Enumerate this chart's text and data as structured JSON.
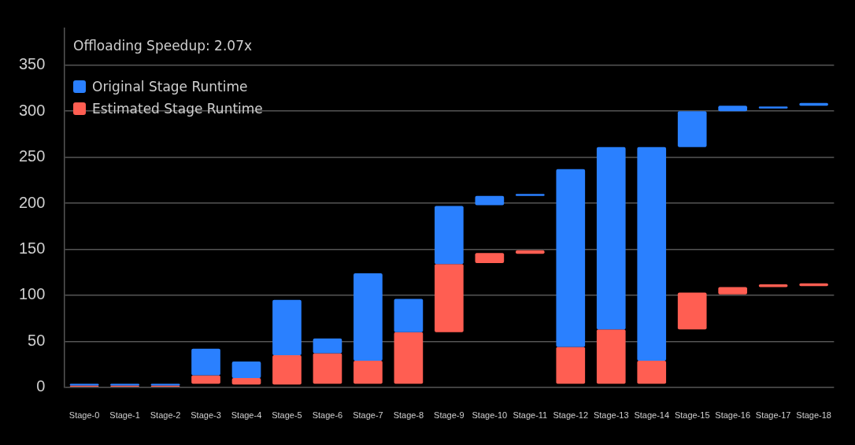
{
  "chart_data": {
    "type": "bar",
    "annotations": [
      "Offloading Speedup: 2.07x"
    ],
    "categories": [
      "Stage-0",
      "Stage-1",
      "Stage-2",
      "Stage-3",
      "Stage-4",
      "Stage-5",
      "Stage-6",
      "Stage-7",
      "Stage-8",
      "Stage-9",
      "Stage-10",
      "Stage-11",
      "Stage-12",
      "Stage-13",
      "Stage-14",
      "Stage-15",
      "Stage-16",
      "Stage-17",
      "Stage-18"
    ],
    "series": [
      {
        "name": "Original Stage Runtime",
        "color": "#2a80ff",
        "base": [
          2,
          2,
          2,
          13,
          10,
          35,
          37,
          29,
          60,
          134,
          198,
          208,
          44,
          63,
          29,
          261,
          300,
          303,
          306
        ],
        "values": [
          2,
          2,
          2,
          29,
          18,
          60,
          16,
          95,
          36,
          63,
          10,
          2,
          193,
          198,
          232,
          39,
          6,
          2,
          3
        ]
      },
      {
        "name": "Estimated Stage Runtime",
        "color": "#ff5e52",
        "base": [
          0,
          0,
          0,
          4,
          3,
          3,
          4,
          4,
          4,
          60,
          135,
          145,
          4,
          4,
          4,
          63,
          101,
          109,
          110
        ],
        "values": [
          2,
          2,
          2,
          9,
          7,
          32,
          33,
          25,
          56,
          74,
          11,
          4,
          40,
          59,
          25,
          40,
          8,
          3,
          3
        ]
      }
    ],
    "ylim": [
      0,
      390
    ],
    "yticks": [
      0,
      50,
      100,
      150,
      200,
      250,
      300,
      350
    ],
    "grid": "y",
    "legend": "top left"
  }
}
